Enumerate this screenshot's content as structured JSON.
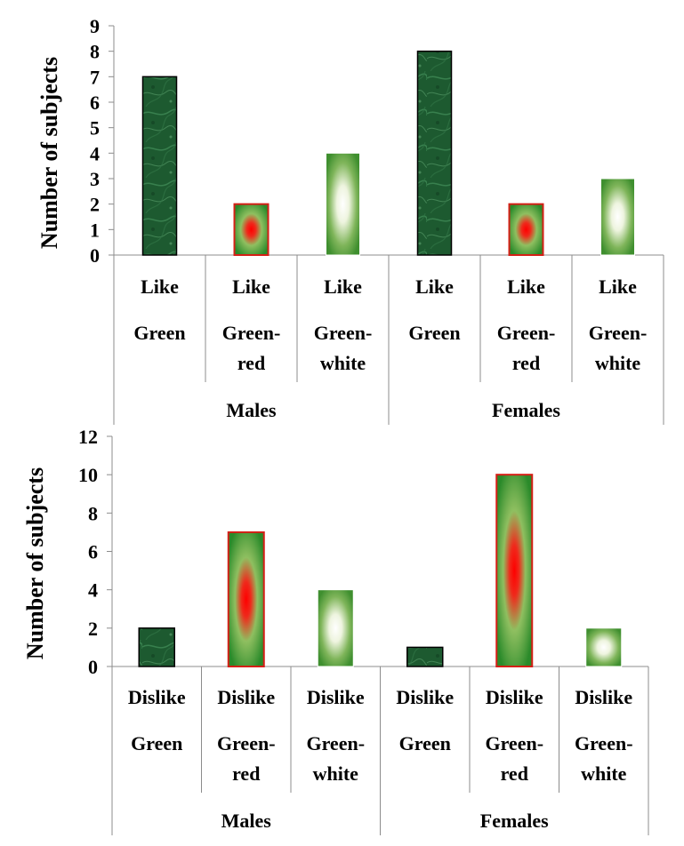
{
  "chart_data": [
    {
      "type": "bar",
      "ylabel": "Number of subjects",
      "ylim": [
        0,
        9
      ],
      "yticks": [
        "0",
        "1",
        "2",
        "3",
        "4",
        "5",
        "6",
        "7",
        "8",
        "9"
      ],
      "grid": false,
      "groups": [
        "Males",
        "Females"
      ],
      "categories": [
        {
          "line1": "Like",
          "line2": "Green",
          "line3": "",
          "group": "Males",
          "value": 7,
          "style": "dark"
        },
        {
          "line1": "Like",
          "line2": "Green-",
          "line3": "red",
          "group": "Males",
          "value": 2,
          "style": "red"
        },
        {
          "line1": "Like",
          "line2": "Green-",
          "line3": "white",
          "group": "Males",
          "value": 4,
          "style": "white"
        },
        {
          "line1": "Like",
          "line2": "Green",
          "line3": "",
          "group": "Females",
          "value": 8,
          "style": "dark"
        },
        {
          "line1": "Like",
          "line2": "Green-",
          "line3": "red",
          "group": "Females",
          "value": 2,
          "style": "red"
        },
        {
          "line1": "Like",
          "line2": "Green-",
          "line3": "white",
          "group": "Females",
          "value": 3,
          "style": "white"
        }
      ]
    },
    {
      "type": "bar",
      "ylabel": "Number of subjects",
      "ylim": [
        0,
        12
      ],
      "yticks": [
        "0",
        "2",
        "4",
        "6",
        "8",
        "10",
        "12"
      ],
      "grid": false,
      "groups": [
        "Males",
        "Females"
      ],
      "categories": [
        {
          "line1": "Dislike",
          "line2": "Green",
          "line3": "",
          "group": "Males",
          "value": 2,
          "style": "dark"
        },
        {
          "line1": "Dislike",
          "line2": "Green-",
          "line3": "red",
          "group": "Males",
          "value": 7,
          "style": "red"
        },
        {
          "line1": "Dislike",
          "line2": "Green-",
          "line3": "white",
          "group": "Males",
          "value": 4,
          "style": "white"
        },
        {
          "line1": "Dislike",
          "line2": "Green",
          "line3": "",
          "group": "Females",
          "value": 1,
          "style": "dark"
        },
        {
          "line1": "Dislike",
          "line2": "Green-",
          "line3": "red",
          "group": "Females",
          "value": 10,
          "style": "red"
        },
        {
          "line1": "Dislike",
          "line2": "Green-",
          "line3": "white",
          "group": "Females",
          "value": 2,
          "style": "white"
        }
      ]
    }
  ]
}
